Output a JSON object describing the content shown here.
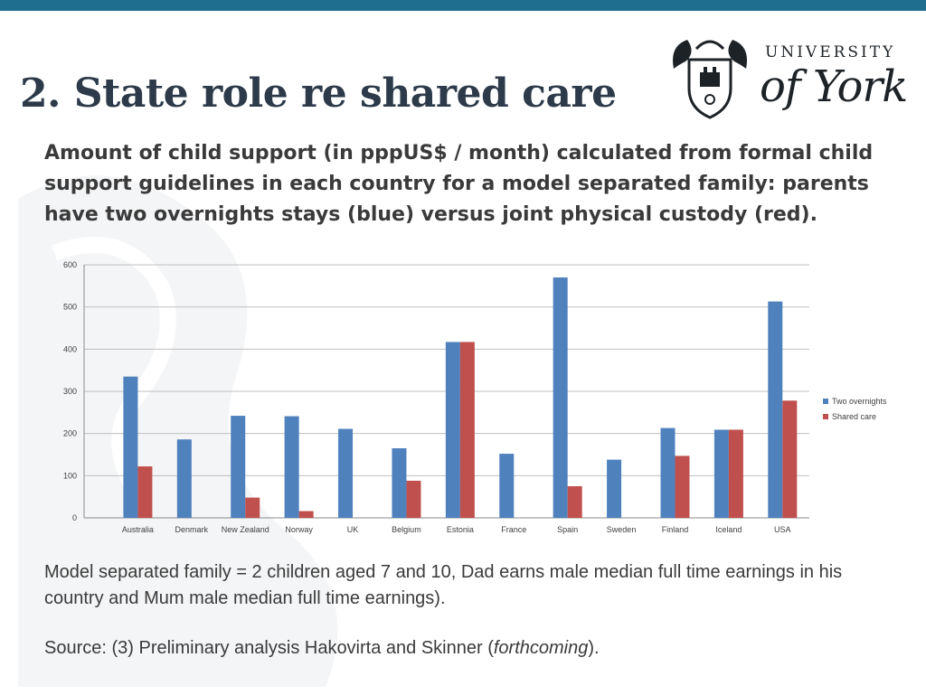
{
  "slide": {
    "title": "2. State role re shared care",
    "subtitle": "Amount of child support (in pppUS$ / month) calculated from formal child support guidelines in each country for a model separated family: parents have two overnights stays (blue) versus joint physical custody (red).",
    "note": "Model separated family = 2 children aged 7 and 10, Dad earns male median full time earnings in his country and Mum male median full time earnings).",
    "source_prefix": "Source: (3) Preliminary analysis Hakovirta and Skinner (",
    "source_italic": "forthcoming",
    "source_suffix": ")."
  },
  "logo": {
    "line1": "UNIVERSITY",
    "line2": "of York"
  },
  "colors": {
    "top_bar": "#1f6d8f",
    "series_blue": "#4f81bd",
    "series_red": "#c0504d"
  },
  "chart_data": {
    "type": "bar",
    "categories": [
      "Australia",
      "Denmark",
      "New Zealand",
      "Norway",
      "UK",
      "Belgium",
      "Estonia",
      "France",
      "Spain",
      "Sweden",
      "Finland",
      "Iceland",
      "USA"
    ],
    "series": [
      {
        "name": "Two overnights",
        "color": "#4f81bd",
        "values": [
          335,
          186,
          242,
          241,
          211,
          165,
          417,
          152,
          570,
          138,
          213,
          209,
          513
        ]
      },
      {
        "name": "Shared care",
        "color": "#c0504d",
        "values": [
          122,
          0,
          48,
          16,
          0,
          88,
          417,
          0,
          75,
          0,
          147,
          209,
          278
        ]
      }
    ],
    "yticks": [
      0,
      100,
      200,
      300,
      400,
      500,
      600
    ],
    "ylim": [
      0,
      600
    ],
    "grid": true,
    "legend": "right"
  }
}
